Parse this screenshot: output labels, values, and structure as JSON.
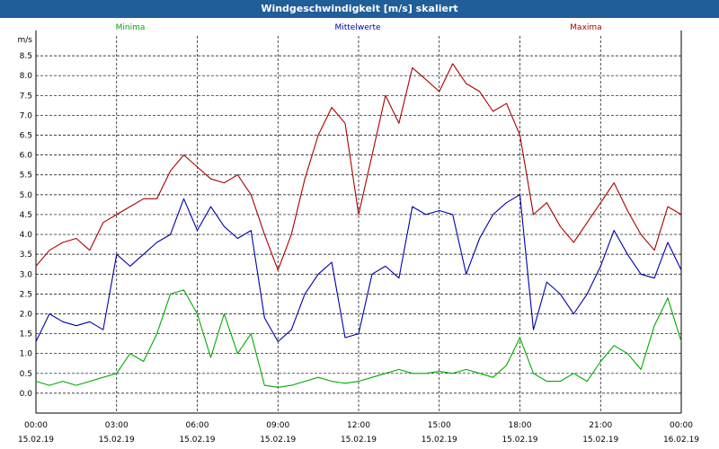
{
  "window": {
    "title": "Windgeschwindigkeit [m/s] skaliert"
  },
  "chart_data": {
    "type": "line",
    "title": "Windgeschwindigkeit [m/s] skaliert",
    "ylabel": "m/s",
    "xlabel": "",
    "ylim": [
      -0.5,
      9.0
    ],
    "xlim_hours": [
      0,
      24
    ],
    "grid": true,
    "yticks": [
      "0.0",
      "0.5",
      "1.0",
      "1.5",
      "2.0",
      "2.5",
      "3.0",
      "3.5",
      "4.0",
      "4.5",
      "5.0",
      "5.5",
      "6.0",
      "6.5",
      "7.0",
      "7.5",
      "8.0",
      "8.5"
    ],
    "xticks": [
      {
        "time": "00:00",
        "date": "15.02.19"
      },
      {
        "time": "03:00",
        "date": "15.02.19"
      },
      {
        "time": "06:00",
        "date": "15.02.19"
      },
      {
        "time": "09:00",
        "date": "15.02.19"
      },
      {
        "time": "12:00",
        "date": "15.02.19"
      },
      {
        "time": "15:00",
        "date": "15.02.19"
      },
      {
        "time": "18:00",
        "date": "15.02.19"
      },
      {
        "time": "21:00",
        "date": "15.02.19"
      },
      {
        "time": "00:00",
        "date": "16.02.19"
      }
    ],
    "x_hours": [
      0,
      0.5,
      1,
      1.5,
      2,
      2.5,
      3,
      3.5,
      4,
      4.5,
      5,
      5.5,
      6,
      6.5,
      7,
      7.5,
      8,
      8.5,
      9,
      9.5,
      10,
      10.5,
      11,
      11.5,
      12,
      12.5,
      13,
      13.5,
      14,
      14.5,
      15,
      15.5,
      16,
      16.5,
      17,
      17.5,
      18,
      18.5,
      19,
      19.5,
      20,
      20.5,
      21,
      21.5,
      22,
      22.5,
      23,
      23.5,
      24
    ],
    "series": [
      {
        "name": "Minima",
        "color": "#00aa00",
        "legend_position": "top-left",
        "values": [
          0.3,
          0.2,
          0.3,
          0.2,
          0.3,
          0.4,
          0.5,
          1.0,
          0.8,
          1.5,
          2.5,
          2.6,
          2.0,
          0.9,
          2.0,
          1.0,
          1.5,
          0.2,
          0.15,
          0.2,
          0.3,
          0.4,
          0.3,
          0.25,
          0.3,
          0.4,
          0.5,
          0.6,
          0.5,
          0.5,
          0.55,
          0.5,
          0.6,
          0.5,
          0.4,
          0.7,
          1.4,
          0.5,
          0.3,
          0.3,
          0.5,
          0.3,
          0.8,
          1.2,
          1.0,
          0.6,
          1.7,
          2.4,
          1.3
        ]
      },
      {
        "name": "Mittelwerte",
        "color": "#0000aa",
        "legend_position": "top-center",
        "values": [
          1.3,
          2.0,
          1.8,
          1.7,
          1.8,
          1.6,
          3.5,
          3.2,
          3.5,
          3.8,
          4.0,
          4.9,
          4.1,
          4.7,
          4.2,
          3.9,
          4.1,
          1.9,
          1.3,
          1.6,
          2.5,
          3.0,
          3.3,
          1.4,
          1.5,
          3.0,
          3.2,
          2.9,
          4.7,
          4.5,
          4.6,
          4.5,
          3.0,
          3.9,
          4.5,
          4.8,
          5.0,
          1.6,
          2.8,
          2.5,
          2.0,
          2.5,
          3.2,
          4.1,
          3.5,
          3.0,
          2.9,
          3.8,
          3.1
        ]
      },
      {
        "name": "Maxima",
        "color": "#aa0000",
        "legend_position": "top-right",
        "values": [
          3.2,
          3.6,
          3.8,
          3.9,
          3.6,
          4.3,
          4.5,
          4.7,
          4.9,
          4.9,
          5.6,
          6.0,
          5.7,
          5.4,
          5.3,
          5.5,
          5.0,
          4.0,
          3.1,
          4.0,
          5.4,
          6.5,
          7.2,
          6.8,
          4.5,
          6.0,
          7.5,
          6.8,
          8.2,
          7.9,
          7.6,
          8.3,
          7.8,
          7.6,
          7.1,
          7.3,
          6.5,
          4.5,
          4.8,
          4.2,
          3.8,
          4.3,
          4.8,
          5.3,
          4.6,
          4.0,
          3.6,
          4.7,
          4.5
        ]
      }
    ]
  }
}
